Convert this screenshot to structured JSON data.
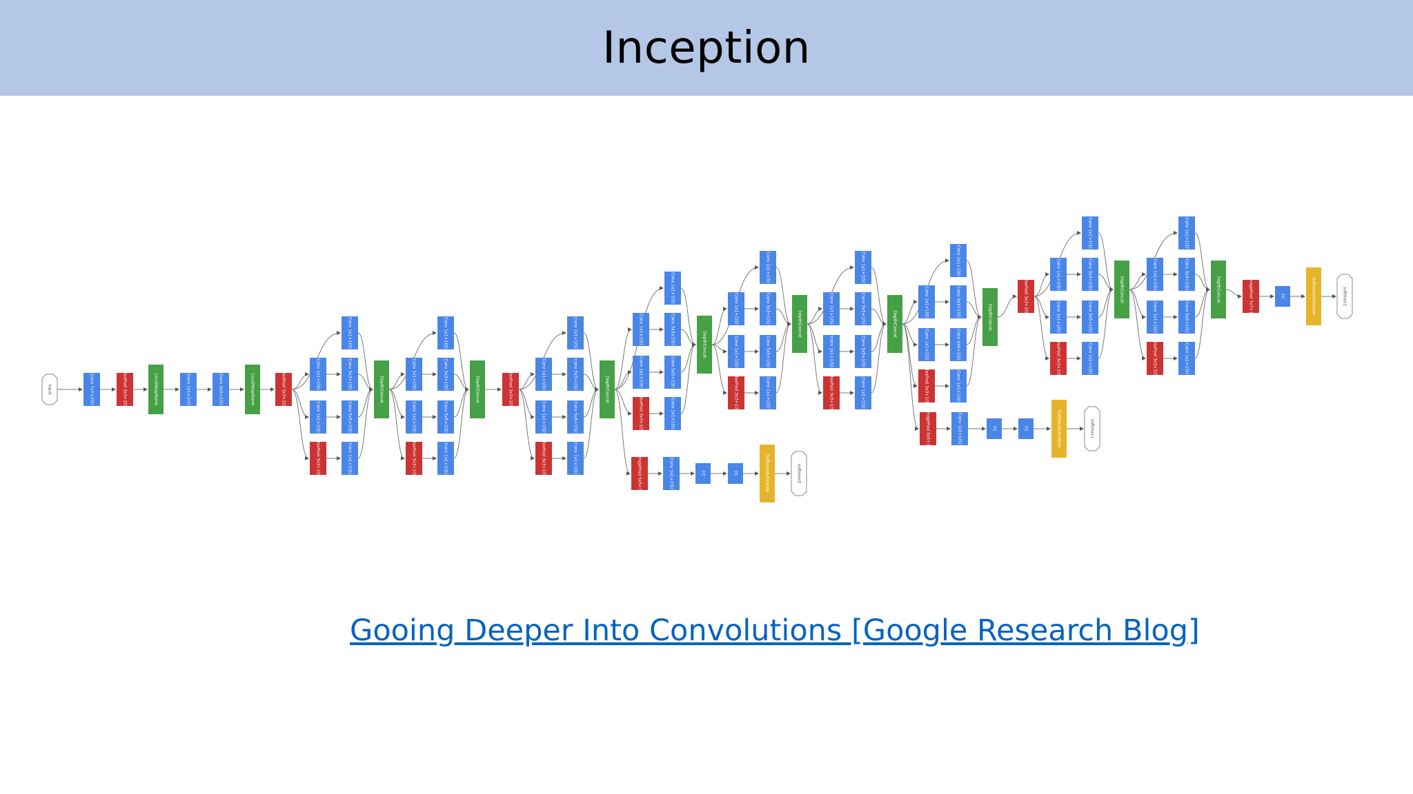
{
  "slide": {
    "title": "Inception",
    "link_text": "Gooing Deeper Into Convolutions [Google Research Blog]"
  },
  "colors": {
    "title_bar": "#b4c7e7",
    "link": "#0563c1",
    "conv": "#4a86e8",
    "pool": "#cc3333",
    "concat": "#46a046",
    "softmax": "#e6b42a"
  },
  "diagram": {
    "nodes": [
      {
        "id": "input",
        "type": "io",
        "label": "input"
      },
      {
        "id": "c1",
        "type": "conv",
        "label": "Conv 7x7+2(S)"
      },
      {
        "id": "p1",
        "type": "pool",
        "label": "MaxPool 3x3+2(S)"
      },
      {
        "id": "lrn1",
        "type": "concat",
        "label": "LocalRespNorm"
      },
      {
        "id": "c2",
        "type": "conv",
        "label": "Conv 1x1+1(V)"
      },
      {
        "id": "c3",
        "type": "conv",
        "label": "Conv 3x3+1(S)"
      },
      {
        "id": "lrn2",
        "type": "concat",
        "label": "LocalRespNorm"
      },
      {
        "id": "p2",
        "type": "pool",
        "label": "MaxPool 3x3+2(S)"
      },
      {
        "id": "a_r1",
        "type": "conv",
        "label": "Conv 1x1+1(S)"
      },
      {
        "id": "a_r2",
        "type": "conv",
        "label": "Conv 1x1+1(S)"
      },
      {
        "id": "a_pool",
        "type": "pool",
        "label": "MaxPool 3x3+1(S)"
      },
      {
        "id": "a_1x1",
        "type": "conv",
        "label": "Conv 1x1+1(S)"
      },
      {
        "id": "a_3x3",
        "type": "conv",
        "label": "Conv 3x3+1(S)"
      },
      {
        "id": "a_5x5",
        "type": "conv",
        "label": "Conv 5x5+1(S)"
      },
      {
        "id": "a_pp",
        "type": "conv",
        "label": "Conv 1x1+1(S)"
      },
      {
        "id": "a_cat",
        "type": "concat",
        "label": "DepthConcat"
      },
      {
        "id": "b_r1",
        "type": "conv",
        "label": "Conv 1x1+1(S)"
      },
      {
        "id": "b_r2",
        "type": "conv",
        "label": "Conv 1x1+1(S)"
      },
      {
        "id": "b_pool",
        "type": "pool",
        "label": "MaxPool 3x3+1(S)"
      },
      {
        "id": "b_1x1",
        "type": "conv",
        "label": "Conv 1x1+1(S)"
      },
      {
        "id": "b_3x3",
        "type": "conv",
        "label": "Conv 3x3+1(S)"
      },
      {
        "id": "b_5x5",
        "type": "conv",
        "label": "Conv 5x5+1(S)"
      },
      {
        "id": "b_pp",
        "type": "conv",
        "label": "Conv 1x1+1(S)"
      },
      {
        "id": "b_cat",
        "type": "concat",
        "label": "DepthConcat"
      },
      {
        "id": "p3",
        "type": "pool",
        "label": "MaxPool 3x3+2(S)"
      },
      {
        "id": "c_r1",
        "type": "conv",
        "label": "Conv 1x1+1(S)"
      },
      {
        "id": "c_r2",
        "type": "conv",
        "label": "Conv 1x1+1(S)"
      },
      {
        "id": "c_pool",
        "type": "pool",
        "label": "MaxPool 3x3+1(S)"
      },
      {
        "id": "c_1x1",
        "type": "conv",
        "label": "Conv 1x1+1(S)"
      },
      {
        "id": "c_3x3",
        "type": "conv",
        "label": "Conv 3x3+1(S)"
      },
      {
        "id": "c_5x5",
        "type": "conv",
        "label": "Conv 5x5+1(S)"
      },
      {
        "id": "c_pp",
        "type": "conv",
        "label": "Conv 1x1+1(S)"
      },
      {
        "id": "c_cat",
        "type": "concat",
        "label": "DepthConcat"
      },
      {
        "id": "ax0_pool",
        "type": "pool",
        "label": "AveragePool 5x5+3(V)"
      },
      {
        "id": "ax0_conv",
        "type": "conv",
        "label": "Conv 1x1+1(S)"
      },
      {
        "id": "ax0_fc1",
        "type": "conv",
        "label": "FC"
      },
      {
        "id": "ax0_fc2",
        "type": "conv",
        "label": "FC"
      },
      {
        "id": "ax0_sm",
        "type": "softmax",
        "label": "SoftmaxActivation"
      },
      {
        "id": "ax0_out",
        "type": "io",
        "label": "softmax0"
      },
      {
        "id": "d_r1",
        "type": "conv",
        "label": "Conv 1x1+1(S)"
      },
      {
        "id": "d_r2",
        "type": "conv",
        "label": "Conv 1x1+1(S)"
      },
      {
        "id": "d_pool",
        "type": "pool",
        "label": "MaxPool 3x3+1(S)"
      },
      {
        "id": "d_1x1",
        "type": "conv",
        "label": "Conv 1x1+1(S)"
      },
      {
        "id": "d_3x3",
        "type": "conv",
        "label": "Conv 3x3+1(S)"
      },
      {
        "id": "d_5x5",
        "type": "conv",
        "label": "Conv 5x5+1(S)"
      },
      {
        "id": "d_pp",
        "type": "conv",
        "label": "Conv 1x1+1(S)"
      },
      {
        "id": "d_cat",
        "type": "concat",
        "label": "DepthConcat"
      },
      {
        "id": "e_r1",
        "type": "conv",
        "label": "Conv 1x1+1(S)"
      },
      {
        "id": "e_r2",
        "type": "conv",
        "label": "Conv 1x1+1(S)"
      },
      {
        "id": "e_pool",
        "type": "pool",
        "label": "MaxPool 3x3+1(S)"
      },
      {
        "id": "e_1x1",
        "type": "conv",
        "label": "Conv 1x1+1(S)"
      },
      {
        "id": "e_3x3",
        "type": "conv",
        "label": "Conv 3x3+1(S)"
      },
      {
        "id": "e_5x5",
        "type": "conv",
        "label": "Conv 5x5+1(S)"
      },
      {
        "id": "e_pp",
        "type": "conv",
        "label": "Conv 1x1+1(S)"
      },
      {
        "id": "e_cat",
        "type": "concat",
        "label": "DepthConcat"
      },
      {
        "id": "f_r1",
        "type": "conv",
        "label": "Conv 1x1+1(S)"
      },
      {
        "id": "f_r2",
        "type": "conv",
        "label": "Conv 1x1+1(S)"
      },
      {
        "id": "f_pool",
        "type": "pool",
        "label": "MaxPool 3x3+1(S)"
      },
      {
        "id": "f_1x1",
        "type": "conv",
        "label": "Conv 1x1+1(S)"
      },
      {
        "id": "f_3x3",
        "type": "conv",
        "label": "Conv 3x3+1(S)"
      },
      {
        "id": "f_5x5",
        "type": "conv",
        "label": "Conv 5x5+1(S)"
      },
      {
        "id": "f_pp",
        "type": "conv",
        "label": "Conv 1x1+1(S)"
      },
      {
        "id": "f_cat",
        "type": "concat",
        "label": "DepthConcat"
      },
      {
        "id": "g_r1",
        "type": "conv",
        "label": "Conv 1x1+1(S)"
      },
      {
        "id": "g_r2",
        "type": "conv",
        "label": "Conv 1x1+1(S)"
      },
      {
        "id": "g_pool",
        "type": "pool",
        "label": "MaxPool 3x3+1(S)"
      },
      {
        "id": "g_1x1",
        "type": "conv",
        "label": "Conv 1x1+1(S)"
      },
      {
        "id": "g_3x3",
        "type": "conv",
        "label": "Conv 3x3+1(S)"
      },
      {
        "id": "g_5x5",
        "type": "conv",
        "label": "Conv 5x5+1(S)"
      },
      {
        "id": "g_pp",
        "type": "conv",
        "label": "Conv 1x1+1(S)"
      },
      {
        "id": "g_cat",
        "type": "concat",
        "label": "DepthConcat"
      },
      {
        "id": "ax1_pool",
        "type": "pool",
        "label": "AveragePool 5x5+3(V)"
      },
      {
        "id": "ax1_conv",
        "type": "conv",
        "label": "Conv 1x1+1(S)"
      },
      {
        "id": "ax1_fc1",
        "type": "conv",
        "label": "FC"
      },
      {
        "id": "ax1_fc2",
        "type": "conv",
        "label": "FC"
      },
      {
        "id": "ax1_sm",
        "type": "softmax",
        "label": "SoftmaxActivation"
      },
      {
        "id": "ax1_out",
        "type": "io",
        "label": "softmax1"
      },
      {
        "id": "p4",
        "type": "pool",
        "label": "MaxPool 3x3+2(S)"
      },
      {
        "id": "h_r1",
        "type": "conv",
        "label": "Conv 1x1+1(S)"
      },
      {
        "id": "h_r2",
        "type": "conv",
        "label": "Conv 1x1+1(S)"
      },
      {
        "id": "h_pool",
        "type": "pool",
        "label": "MaxPool 3x3+1(S)"
      },
      {
        "id": "h_1x1",
        "type": "conv",
        "label": "Conv 1x1+1(S)"
      },
      {
        "id": "h_3x3",
        "type": "conv",
        "label": "Conv 3x3+1(S)"
      },
      {
        "id": "h_5x5",
        "type": "conv",
        "label": "Conv 5x5+1(S)"
      },
      {
        "id": "h_pp",
        "type": "conv",
        "label": "Conv 1x1+1(S)"
      },
      {
        "id": "h_cat",
        "type": "concat",
        "label": "DepthConcat"
      },
      {
        "id": "i_r1",
        "type": "conv",
        "label": "Conv 1x1+1(S)"
      },
      {
        "id": "i_r2",
        "type": "conv",
        "label": "Conv 1x1+1(S)"
      },
      {
        "id": "i_pool",
        "type": "pool",
        "label": "MaxPool 3x3+1(S)"
      },
      {
        "id": "i_1x1",
        "type": "conv",
        "label": "Conv 1x1+1(S)"
      },
      {
        "id": "i_3x3",
        "type": "conv",
        "label": "Conv 3x3+1(S)"
      },
      {
        "id": "i_5x5",
        "type": "conv",
        "label": "Conv 5x5+1(S)"
      },
      {
        "id": "i_pp",
        "type": "conv",
        "label": "Conv 1x1+1(S)"
      },
      {
        "id": "i_cat",
        "type": "concat",
        "label": "DepthConcat"
      },
      {
        "id": "avg",
        "type": "pool",
        "label": "AveragePool 7x7+1(V)"
      },
      {
        "id": "fc",
        "type": "conv",
        "label": "FC"
      },
      {
        "id": "sm2",
        "type": "softmax",
        "label": "SoftmaxActivation"
      },
      {
        "id": "out2",
        "type": "io",
        "label": "softmax2"
      }
    ]
  }
}
